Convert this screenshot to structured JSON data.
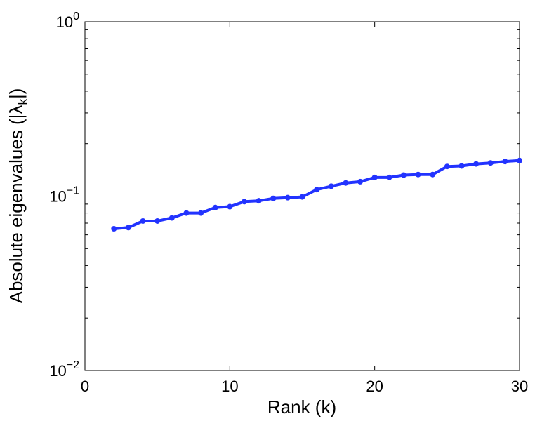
{
  "chart_data": {
    "type": "line",
    "xlabel": "Rank (k)",
    "ylabel_parts": {
      "prefix": "Absolute eigenvalues (|",
      "symbol": "λ",
      "subscript": "k",
      "suffix": "|)"
    },
    "xlim": [
      0,
      30
    ],
    "ylim": [
      0.01,
      1
    ],
    "yscale": "log",
    "grid": false,
    "legend": "none",
    "x_ticks": [
      {
        "value": 0,
        "label": "0"
      },
      {
        "value": 10,
        "label": "10"
      },
      {
        "value": 20,
        "label": "20"
      },
      {
        "value": 30,
        "label": "30"
      }
    ],
    "y_ticks": [
      {
        "value": 1,
        "base": "10",
        "exp": "0"
      },
      {
        "value": 0.1,
        "base": "10",
        "exp": "−1"
      },
      {
        "value": 0.01,
        "base": "10",
        "exp": "−2"
      }
    ],
    "series": [
      {
        "color": "#2233ff",
        "marker": "circle",
        "x": [
          2,
          3,
          4,
          5,
          6,
          7,
          8,
          9,
          10,
          11,
          12,
          13,
          14,
          15,
          16,
          17,
          18,
          19,
          20,
          21,
          22,
          23,
          24,
          25,
          26,
          27,
          28,
          29,
          30
        ],
        "y": [
          0.065,
          0.066,
          0.072,
          0.072,
          0.075,
          0.08,
          0.08,
          0.086,
          0.087,
          0.093,
          0.094,
          0.097,
          0.098,
          0.099,
          0.109,
          0.114,
          0.119,
          0.121,
          0.128,
          0.128,
          0.132,
          0.133,
          0.133,
          0.148,
          0.149,
          0.153,
          0.155,
          0.158,
          0.16
        ]
      }
    ]
  }
}
